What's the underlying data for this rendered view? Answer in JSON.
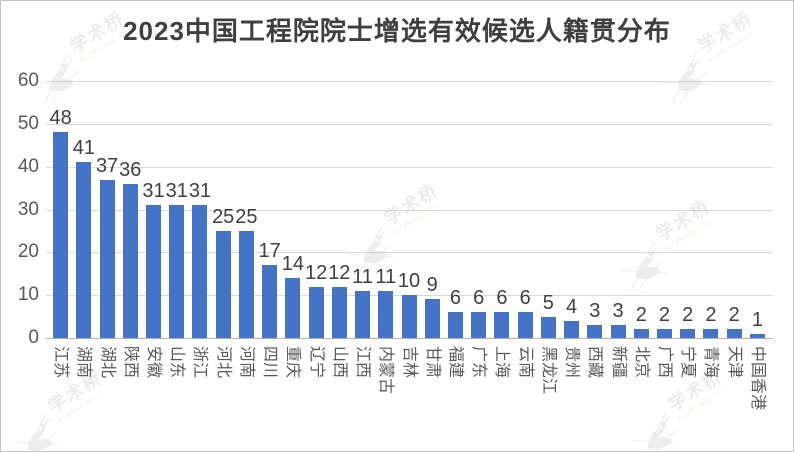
{
  "title": "2023中国工程院院士增选有效候选人籍贯分布",
  "watermark": {
    "text": "学术桥",
    "subtext": "AcaBridge.cn"
  },
  "colors": {
    "bar": "#4472C4",
    "grid": "#D9D9D9",
    "axis": "#B3B3B3",
    "title_text": "#3F3F3F",
    "value_label": "#404040",
    "tick_label": "#595959"
  },
  "chart_data": {
    "type": "bar",
    "title": "2023中国工程院院士增选有效候选人籍贯分布",
    "categories": [
      "江苏",
      "湖南",
      "湖北",
      "陕西",
      "安徽",
      "山东",
      "浙江",
      "河北",
      "河南",
      "四川",
      "重庆",
      "辽宁",
      "山西",
      "江西",
      "内蒙古",
      "吉林",
      "甘肃",
      "福建",
      "广东",
      "上海",
      "云南",
      "黑龙江",
      "贵州",
      "西藏",
      "新疆",
      "北京",
      "广西",
      "宁夏",
      "青海",
      "天津",
      "中国香港"
    ],
    "values": [
      48,
      41,
      37,
      36,
      31,
      31,
      31,
      25,
      25,
      17,
      14,
      12,
      12,
      11,
      11,
      10,
      9,
      6,
      6,
      6,
      6,
      5,
      4,
      3,
      3,
      2,
      2,
      2,
      2,
      2,
      1
    ],
    "xlabel": "",
    "ylabel": "",
    "ylim": [
      0,
      60
    ],
    "yticks": [
      0,
      10,
      20,
      30,
      40,
      50,
      60
    ],
    "grid": true,
    "legend": false,
    "value_labels_shown": true
  }
}
